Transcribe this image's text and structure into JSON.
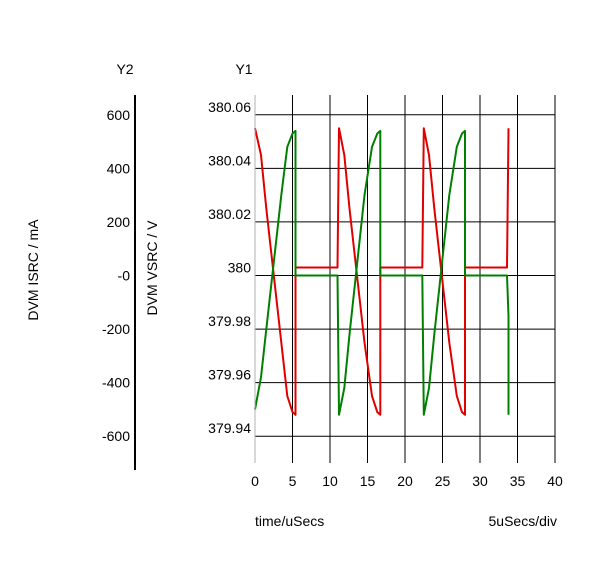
{
  "chart_data": {
    "type": "line",
    "y2_header": "Y2",
    "y1_header": "Y1",
    "y2_label": "DVM ISRC / mA",
    "y1_label": "DVM VSRC / V",
    "xlabel": "time/uSecs",
    "x_scale_note": "5uSecs/div",
    "xlim": [
      0,
      40
    ],
    "y1lim": [
      379.93,
      380.07
    ],
    "y2lim": [
      -700,
      700
    ],
    "grid": true,
    "x_ticks": [
      "0",
      "5",
      "10",
      "15",
      "20",
      "25",
      "30",
      "35",
      "40"
    ],
    "y1_ticks": [
      "380.06",
      "380.04",
      "380.02",
      "380",
      "379.98",
      "379.96",
      "379.94"
    ],
    "y2_ticks": [
      "600",
      "400",
      "200",
      "-0",
      "-200",
      "-400",
      "-600"
    ],
    "series": [
      {
        "axis": "y1",
        "color": "#e00000",
        "points": [
          [
            0,
            380.055
          ],
          [
            0.8,
            380.045
          ],
          [
            1.5,
            380.025
          ],
          [
            2.5,
            380.0
          ],
          [
            3.5,
            379.975
          ],
          [
            4.3,
            379.955
          ],
          [
            5.0,
            379.949
          ],
          [
            5.4,
            379.948
          ],
          [
            5.4,
            380.003
          ],
          [
            11.0,
            380.003
          ],
          [
            11.2,
            380.055
          ],
          [
            11.9,
            380.045
          ],
          [
            12.6,
            380.025
          ],
          [
            13.6,
            380.0
          ],
          [
            14.6,
            379.975
          ],
          [
            15.6,
            379.955
          ],
          [
            16.3,
            379.949
          ],
          [
            16.7,
            379.948
          ],
          [
            16.7,
            380.003
          ],
          [
            22.3,
            380.003
          ],
          [
            22.5,
            380.055
          ],
          [
            23.2,
            380.045
          ],
          [
            23.9,
            380.025
          ],
          [
            24.9,
            380.0
          ],
          [
            25.9,
            379.975
          ],
          [
            26.9,
            379.955
          ],
          [
            27.6,
            379.949
          ],
          [
            28.0,
            379.948
          ],
          [
            28.0,
            380.003
          ],
          [
            33.6,
            380.003
          ],
          [
            33.8,
            380.055
          ]
        ]
      },
      {
        "axis": "y1",
        "color": "#008000",
        "points": [
          [
            0,
            379.95
          ],
          [
            0.8,
            379.962
          ],
          [
            1.5,
            379.98
          ],
          [
            2.5,
            380.005
          ],
          [
            3.5,
            380.03
          ],
          [
            4.3,
            380.048
          ],
          [
            5.0,
            380.053
          ],
          [
            5.4,
            380.054
          ],
          [
            5.4,
            380.0
          ],
          [
            11.0,
            380.0
          ],
          [
            11.2,
            379.948
          ],
          [
            11.9,
            379.958
          ],
          [
            12.6,
            379.978
          ],
          [
            13.6,
            380.004
          ],
          [
            14.6,
            380.03
          ],
          [
            15.6,
            380.048
          ],
          [
            16.3,
            380.053
          ],
          [
            16.7,
            380.054
          ],
          [
            16.7,
            380.0
          ],
          [
            22.3,
            380.0
          ],
          [
            22.5,
            379.948
          ],
          [
            23.2,
            379.958
          ],
          [
            23.9,
            379.978
          ],
          [
            24.9,
            380.004
          ],
          [
            25.9,
            380.03
          ],
          [
            26.9,
            380.048
          ],
          [
            27.6,
            380.053
          ],
          [
            28.0,
            380.054
          ],
          [
            28.0,
            380.0
          ],
          [
            33.6,
            380.0
          ],
          [
            33.8,
            379.985
          ],
          [
            33.8,
            379.948
          ]
        ]
      }
    ]
  }
}
